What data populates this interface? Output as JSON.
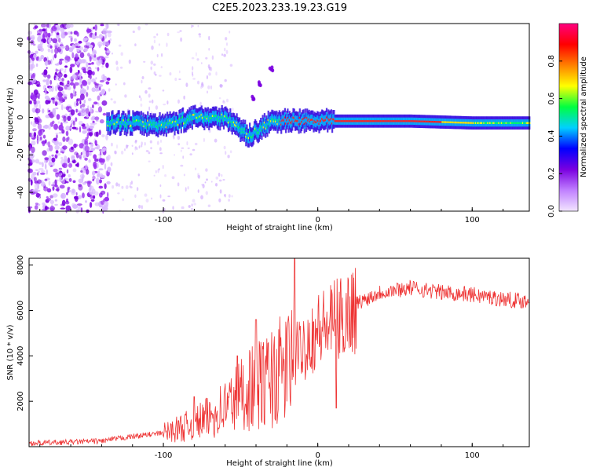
{
  "title": "C2E5.2023.233.19.23.G19",
  "chart_data": [
    {
      "type": "heatmap",
      "xlabel": "Height of straight line (km)",
      "ylabel": "Frequency (Hz)",
      "xlim": [
        -187,
        137
      ],
      "ylim": [
        -50,
        50
      ],
      "x_ticks": [
        -100,
        0,
        100
      ],
      "y_ticks": [
        -40,
        -20,
        0,
        20,
        40
      ],
      "colorbar": {
        "label": "Normalized spectral amplitude",
        "range": [
          0,
          1
        ],
        "ticks": [
          "0.0",
          "0.2",
          "0.4",
          "0.6",
          "0.8"
        ],
        "colors": [
          "#f2e6ff",
          "#c080ff",
          "#7a00e0",
          "#0000ff",
          "#00d0ff",
          "#00ff40",
          "#ffff00",
          "#ff8000",
          "#ff0000",
          "#ff0080"
        ]
      },
      "ridge": [
        {
          "x": -137,
          "freq": -3
        },
        {
          "x": -120,
          "freq": -3
        },
        {
          "x": -100,
          "freq": -4
        },
        {
          "x": -80,
          "freq": 0
        },
        {
          "x": -60,
          "freq": 0
        },
        {
          "x": -45,
          "freq": -10
        },
        {
          "x": -30,
          "freq": -2
        },
        {
          "x": -15,
          "freq": -2
        },
        {
          "x": 0,
          "freq": -2
        },
        {
          "x": 30,
          "freq": -2
        },
        {
          "x": 60,
          "freq": -2
        },
        {
          "x": 100,
          "freq": -3
        },
        {
          "x": 137,
          "freq": -3
        }
      ],
      "branch": [
        {
          "x": -42,
          "freq": 10
        },
        {
          "x": -37,
          "freq": 18
        },
        {
          "x": -30,
          "freq": 26
        }
      ]
    },
    {
      "type": "line",
      "xlabel": "Height of straight line (km)",
      "ylabel": "SNR (10 * v/v)",
      "xlim": [
        -187,
        137
      ],
      "ylim": [
        0,
        8300
      ],
      "x_ticks": [
        -100,
        0,
        100
      ],
      "y_ticks": [
        2000,
        4000,
        6000,
        8000
      ],
      "series_color": "#ee3333",
      "envelope": [
        {
          "x": -187,
          "y": 150
        },
        {
          "x": -160,
          "y": 200
        },
        {
          "x": -140,
          "y": 250
        },
        {
          "x": -120,
          "y": 450
        },
        {
          "x": -100,
          "y": 600
        },
        {
          "x": -85,
          "y": 900
        },
        {
          "x": -70,
          "y": 1300
        },
        {
          "x": -55,
          "y": 2000
        },
        {
          "x": -45,
          "y": 2600
        },
        {
          "x": -35,
          "y": 2800
        },
        {
          "x": -20,
          "y": 3500
        },
        {
          "x": -10,
          "y": 4400
        },
        {
          "x": 0,
          "y": 5100
        },
        {
          "x": 15,
          "y": 5600
        },
        {
          "x": 25,
          "y": 6300
        },
        {
          "x": 40,
          "y": 6800
        },
        {
          "x": 60,
          "y": 7000
        },
        {
          "x": 80,
          "y": 6800
        },
        {
          "x": 100,
          "y": 6700
        },
        {
          "x": 120,
          "y": 6500
        },
        {
          "x": 137,
          "y": 6400
        }
      ],
      "spikes": [
        {
          "x": -15,
          "y": 8300
        },
        {
          "x": -40,
          "y": 5600
        },
        {
          "x": -52,
          "y": 4000
        },
        {
          "x": -80,
          "y": 2200
        },
        {
          "x": 12,
          "y": 1700
        }
      ]
    }
  ]
}
